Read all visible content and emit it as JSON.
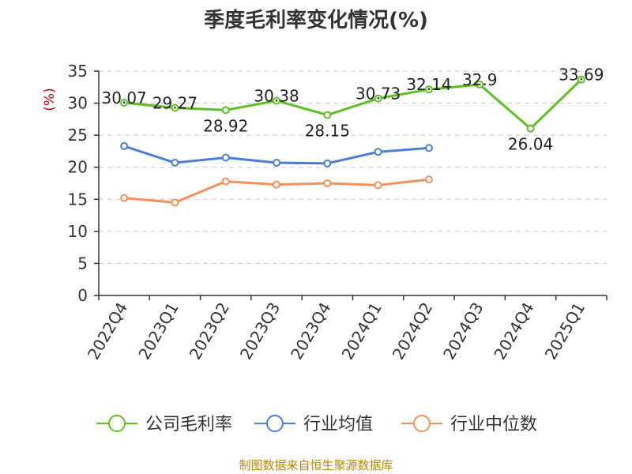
{
  "chart_data": {
    "type": "line",
    "title": "季度毛利率变化情况(%)",
    "ylabel": "(%)",
    "xlabel": "",
    "ylim": [
      0,
      35
    ],
    "yticks": [
      0,
      5,
      10,
      15,
      20,
      25,
      30,
      35
    ],
    "grid": true,
    "legend_position": "bottom",
    "categories": [
      "2022Q4",
      "2023Q1",
      "2023Q2",
      "2023Q3",
      "2023Q4",
      "2024Q1",
      "2024Q2",
      "2024Q3",
      "2024Q4",
      "2025Q1"
    ],
    "series": [
      {
        "name": "公司毛利率",
        "color": "#5cc020",
        "show_labels": true,
        "values": [
          30.07,
          29.27,
          28.92,
          30.38,
          28.15,
          30.73,
          32.14,
          32.9,
          26.04,
          33.69
        ]
      },
      {
        "name": "行业均值",
        "color": "#4a7fd9",
        "show_labels": false,
        "values": [
          23.3,
          20.7,
          21.5,
          20.7,
          20.6,
          22.4,
          23.0,
          null,
          null,
          null
        ]
      },
      {
        "name": "行业中位数",
        "color": "#f4905a",
        "show_labels": false,
        "values": [
          15.2,
          14.5,
          17.8,
          17.3,
          17.5,
          17.2,
          18.1,
          null,
          null,
          null
        ]
      }
    ]
  },
  "source": "制图数据来自恒生聚源数据库"
}
